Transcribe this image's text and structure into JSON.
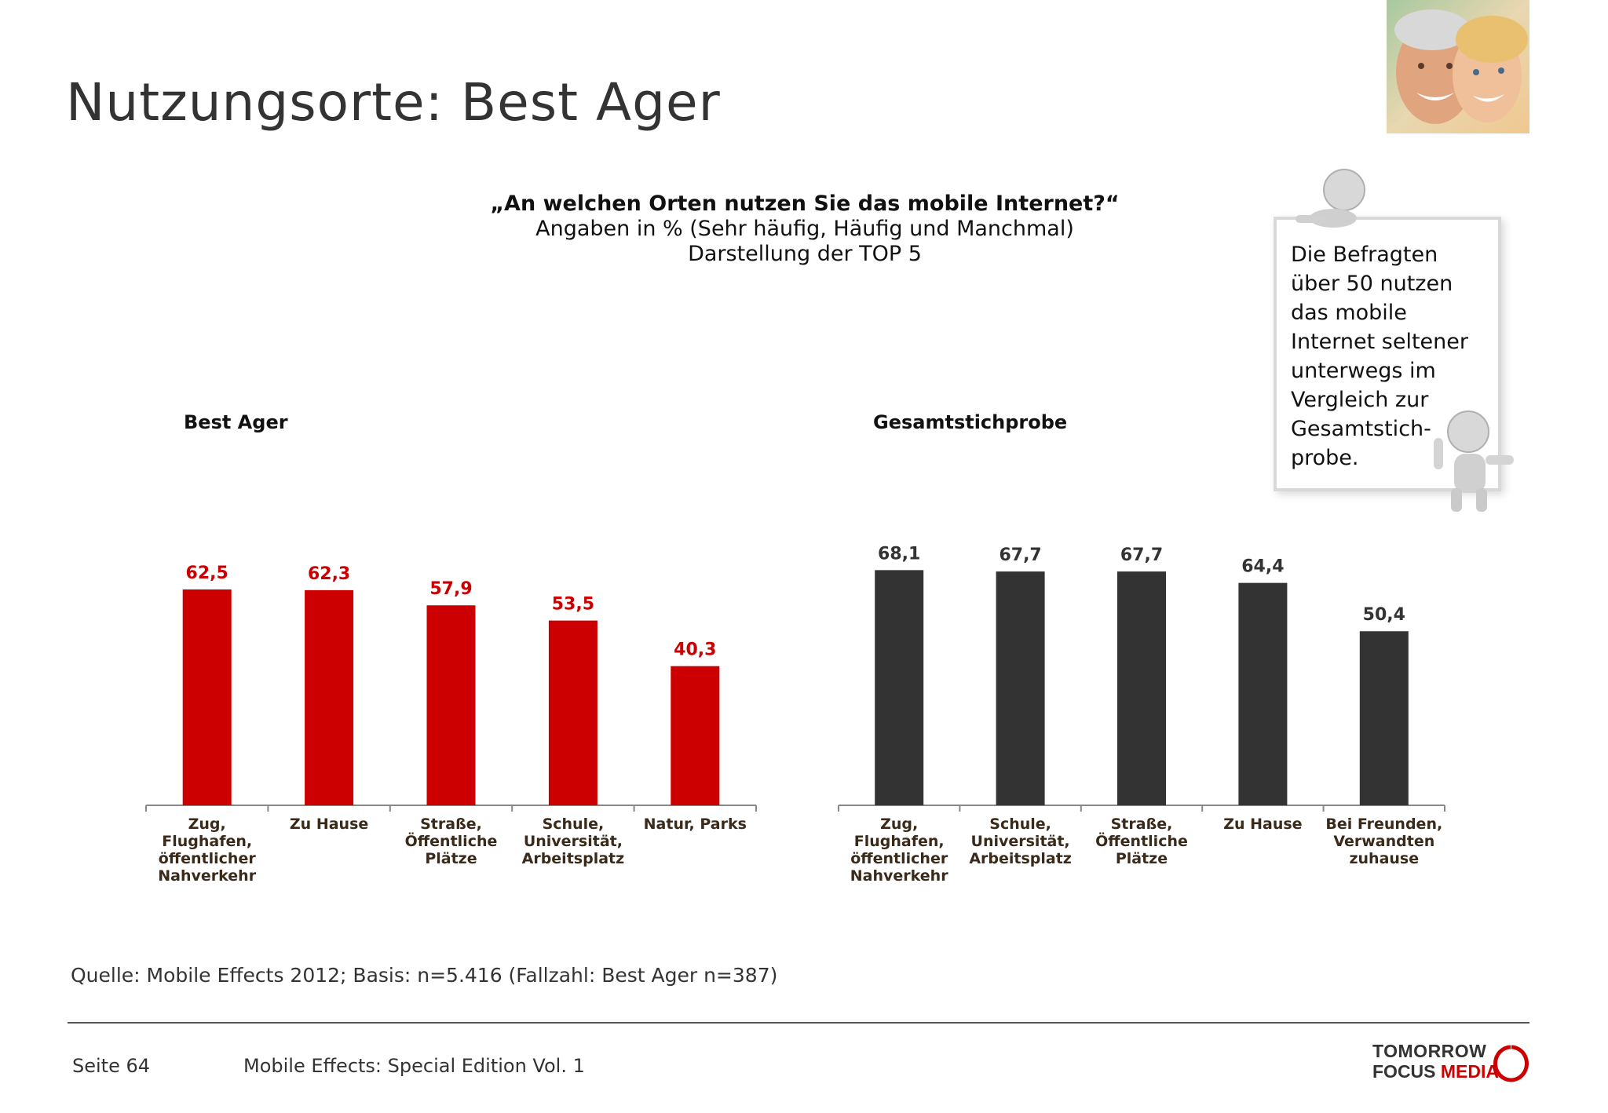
{
  "page": {
    "title": "Nutzungsorte: Best Ager",
    "question": "„An welchen Orten nutzen Sie das mobile Internet?“",
    "subtitle_1": "Angaben in % (Sehr häufig, Häufig und Manchmal)",
    "subtitle_2": "Darstellung der TOP 5",
    "note": "Die Befragten über 50 nutzen das mobile Internet seltener unterwegs im Vergleich zur Gesamtstich-probe.",
    "source": "Quelle: Mobile Effects 2012; Basis: n=5.416 (Fallzahl: Best Ager n=387)",
    "page_number": "Seite 64",
    "publication": "Mobile Effects: Special Edition Vol. 1",
    "logo_line1": "TOMORROW",
    "logo_line2a": "FOCUS ",
    "logo_line2b": "MEDIA"
  },
  "colors": {
    "best_ager": "#cc0000",
    "gesamt": "#333333",
    "logo_accent": "#cc0000"
  },
  "chart_data": [
    {
      "type": "bar",
      "title": "Best Ager",
      "color": "#cc0000",
      "categories": [
        [
          "Zug,",
          "Flughafen,",
          "öffentlicher",
          "Nahverkehr"
        ],
        [
          "Zu Hause"
        ],
        [
          "Straße,",
          "Öffentliche",
          "Plätze"
        ],
        [
          "Schule,",
          "Universität,",
          "Arbeitsplatz"
        ],
        [
          "Natur, Parks"
        ]
      ],
      "values": [
        62.5,
        62.3,
        57.9,
        53.5,
        40.3
      ],
      "value_labels": [
        "62,5",
        "62,3",
        "57,9",
        "53,5",
        "40,3"
      ],
      "ylim": [
        0,
        100
      ],
      "grid": false
    },
    {
      "type": "bar",
      "title": "Gesamtstichprobe",
      "color": "#333333",
      "categories": [
        [
          "Zug,",
          "Flughafen,",
          "öffentlicher",
          "Nahverkehr"
        ],
        [
          "Schule,",
          "Universität,",
          "Arbeitsplatz"
        ],
        [
          "Straße,",
          "Öffentliche",
          "Plätze"
        ],
        [
          "Zu Hause"
        ],
        [
          "Bei Freunden,",
          "Verwandten",
          "zuhause"
        ]
      ],
      "values": [
        68.1,
        67.7,
        67.7,
        64.4,
        50.4
      ],
      "value_labels": [
        "68,1",
        "67,7",
        "67,7",
        "64,4",
        "50,4"
      ],
      "ylim": [
        0,
        100
      ],
      "grid": false
    }
  ]
}
